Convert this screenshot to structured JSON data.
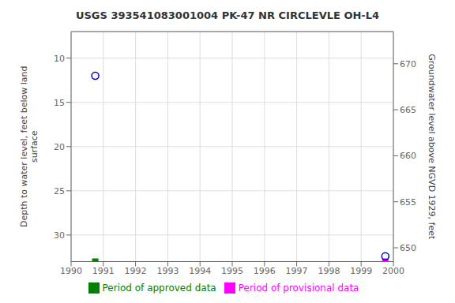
{
  "chart_data": {
    "type": "scatter",
    "title": "USGS 393541083001004 PK-47 NR CIRCLEVLE OH-L4",
    "y_label": "Depth to water level, feet below land\n surface",
    "y2_label": "Groundwater level above NGVD 1929, feet",
    "xlim": [
      1990,
      2000
    ],
    "xticks": [
      1990,
      1991,
      1992,
      1993,
      1994,
      1995,
      1996,
      1997,
      1998,
      1999,
      2000
    ],
    "ylim": [
      33,
      7
    ],
    "yticks": [
      10,
      15,
      20,
      25,
      30
    ],
    "y2lim": [
      648.5,
      673.5
    ],
    "y2ticks": [
      650,
      655,
      660,
      665,
      670
    ],
    "grid": true,
    "legend": "bottom",
    "series": [
      {
        "name": "Period of approved data",
        "color": "#008000",
        "marker": "square",
        "x": [
          1990.75
        ],
        "values": [
          33.0
        ]
      },
      {
        "name": "Period of provisional data",
        "color": "#ff00ff",
        "marker": "square",
        "x": [
          1999.75
        ],
        "values": [
          33.0
        ]
      },
      {
        "color": "#0000cc",
        "marker": "circle",
        "x": [
          1990.75,
          1999.75
        ],
        "values": [
          12.0,
          32.4
        ]
      }
    ]
  }
}
